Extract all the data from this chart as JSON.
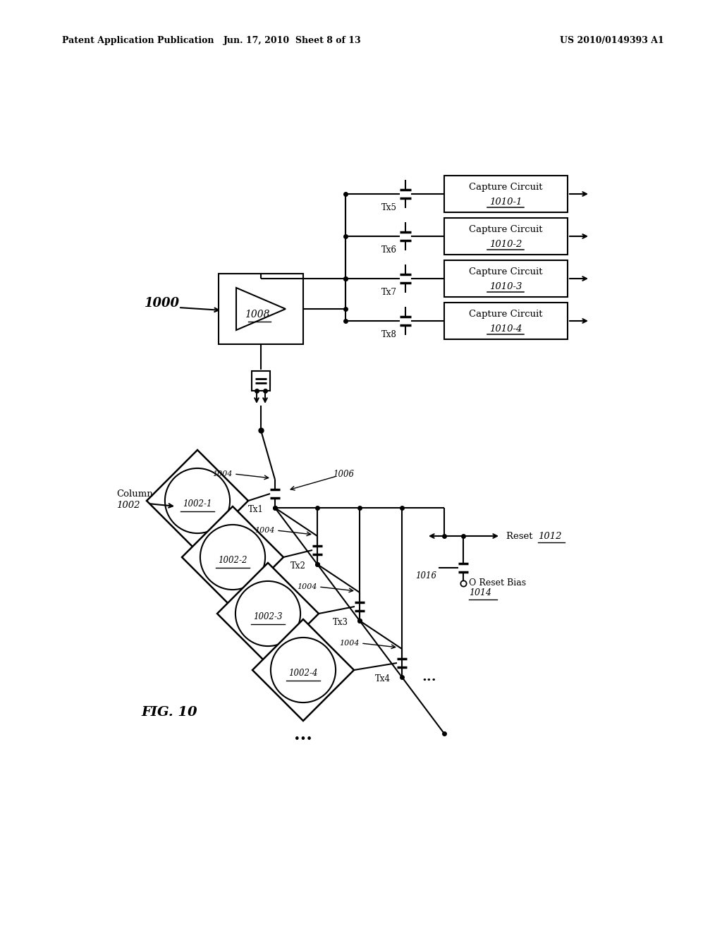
{
  "title_left": "Patent Application Publication",
  "title_mid": "Jun. 17, 2010  Sheet 8 of 13",
  "title_right": "US 2010/0149393 A1",
  "background": "#ffffff"
}
